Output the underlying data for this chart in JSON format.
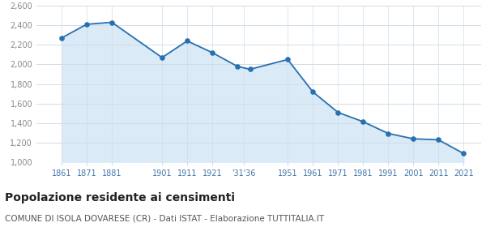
{
  "years": [
    1861,
    1871,
    1881,
    1901,
    1911,
    1921,
    1931,
    1936,
    1951,
    1961,
    1971,
    1981,
    1991,
    2001,
    2011,
    2021
  ],
  "population": [
    2270,
    2410,
    2430,
    2070,
    2240,
    2120,
    1980,
    1950,
    2050,
    1720,
    1510,
    1415,
    1295,
    1240,
    1230,
    1090
  ],
  "ylim": [
    1000,
    2600
  ],
  "yticks": [
    1000,
    1200,
    1400,
    1600,
    1800,
    2000,
    2200,
    2400,
    2600
  ],
  "xlim_left": 1851,
  "xlim_right": 2028,
  "line_color": "#2970b0",
  "fill_color": "#daeaf7",
  "marker_color": "#2970b0",
  "grid_color": "#d0dde8",
  "background_color": "#ffffff",
  "title": "Popolazione residente ai censimenti",
  "subtitle": "COMUNE DI ISOLA DOVARESE (CR) - Dati ISTAT - Elaborazione TUTTITALIA.IT",
  "title_fontsize": 10,
  "subtitle_fontsize": 7.5,
  "title_color": "#222222",
  "subtitle_color": "#555555",
  "tick_label_color": "#4477aa",
  "tick_label_fontsize": 7,
  "ytick_label_color": "#888888",
  "ytick_label_fontsize": 7
}
